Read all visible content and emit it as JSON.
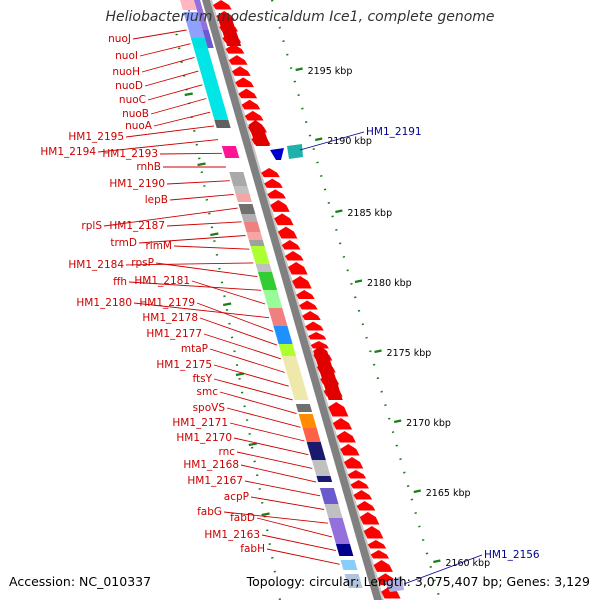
{
  "title": "Heliobacterium modesticaldum Ice1, complete genome",
  "accession": "Accession: NC_010337",
  "topology": "Topology: circular; Length: 3,075,407 bp; Genes: 3,129",
  "colors": {
    "label_red": "#cc0000",
    "label_blue": "#00008b",
    "arrow_red": "#ff0000",
    "tick_green": "#1a7f1a",
    "backbone": "#808080"
  },
  "scale_labels": [
    "2195 kbp",
    "2190 kbp",
    "2185 kbp",
    "2180 kbp",
    "2175 kbp",
    "2170 kbp",
    "2165 kbp",
    "2160 kbp"
  ],
  "gene_labels_left": [
    "nuoJ",
    "nuoI",
    "nuoH",
    "nuoD",
    "nuoC",
    "nuoB",
    "nuoA",
    "HM1_2195",
    "HM1_2194",
    "HM1_2193",
    "rnhB",
    "HM1_2190",
    "lepB",
    "rplS",
    "HM1_2187",
    "trmD",
    "rimM",
    "HM1_2184",
    "rpsP",
    "ffh",
    "HM1_2181",
    "HM1_2180",
    "HM1_2179",
    "HM1_2178",
    "HM1_2177",
    "mtaP",
    "HM1_2175",
    "ftsY",
    "smc",
    "spoVS",
    "HM1_2171",
    "HM1_2170",
    "rnc",
    "HM1_2168",
    "HM1_2167",
    "acpP",
    "fabG",
    "fabD",
    "HM1_2163",
    "fabH"
  ],
  "gene_labels_right": [
    "HM1_2191",
    "HM1_2156"
  ]
}
